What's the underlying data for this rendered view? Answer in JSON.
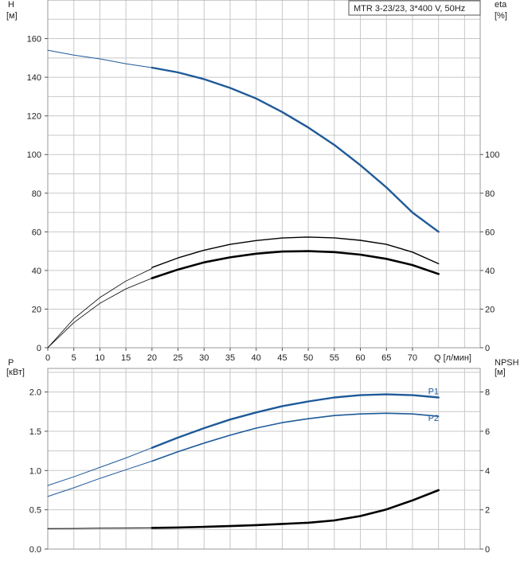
{
  "chart_data": [
    {
      "id": "top",
      "type": "line",
      "title_box": "MTR 3-23/23, 3*400 V, 50Hz",
      "left_axis": {
        "label_line1": "H",
        "label_line2": "[м]",
        "ticks": [
          0,
          20,
          40,
          60,
          80,
          100,
          120,
          140,
          160
        ],
        "range": [
          0,
          180
        ]
      },
      "right_axis": {
        "label_line1": "eta",
        "label_line2": "[%]",
        "ticks": [
          0,
          20,
          40,
          60,
          80,
          100
        ],
        "range": [
          0,
          180
        ]
      },
      "x_axis": {
        "ticks": [
          0,
          5,
          10,
          15,
          20,
          25,
          30,
          35,
          40,
          45,
          50,
          55,
          60,
          65,
          70
        ],
        "label": "Q [л/мин]",
        "range": [
          0,
          83
        ]
      },
      "grid": true,
      "series": [
        {
          "axis": "left",
          "color": "#1f5a99",
          "width": 1,
          "points": [
            [
              0,
              154
            ],
            [
              5,
              151.5
            ],
            [
              10,
              149.5
            ],
            [
              15,
              147
            ],
            [
              20,
              145
            ]
          ]
        },
        {
          "axis": "left",
          "color": "#1f5a99",
          "width": 2.4,
          "points": [
            [
              20,
              145
            ],
            [
              25,
              142.5
            ],
            [
              30,
              139
            ],
            [
              35,
              134.5
            ],
            [
              40,
              129
            ],
            [
              45,
              122
            ],
            [
              50,
              114
            ],
            [
              55,
              105
            ],
            [
              60,
              94.5
            ],
            [
              65,
              83
            ],
            [
              70,
              70
            ],
            [
              75,
              60
            ]
          ]
        },
        {
          "axis": "right",
          "color": "#000000",
          "width": 0.8,
          "points": [
            [
              0,
              0
            ],
            [
              5,
              15
            ],
            [
              10,
              26
            ],
            [
              15,
              34.5
            ],
            [
              20,
              41
            ]
          ]
        },
        {
          "axis": "right",
          "color": "#000000",
          "width": 1.4,
          "points": [
            [
              20,
              41.5
            ],
            [
              25,
              46.5
            ],
            [
              30,
              50.5
            ],
            [
              35,
              53.5
            ],
            [
              40,
              55.5
            ],
            [
              45,
              56.8
            ],
            [
              50,
              57.3
            ],
            [
              55,
              56.9
            ],
            [
              60,
              55.6
            ],
            [
              65,
              53.5
            ],
            [
              70,
              49.5
            ],
            [
              75,
              43.5
            ]
          ]
        },
        {
          "axis": "right",
          "color": "#000000",
          "width": 0.8,
          "points": [
            [
              0,
              0
            ],
            [
              5,
              13
            ],
            [
              10,
              23
            ],
            [
              15,
              30.5
            ],
            [
              20,
              36
            ]
          ]
        },
        {
          "axis": "right",
          "color": "#000000",
          "width": 2.6,
          "points": [
            [
              20,
              36
            ],
            [
              25,
              40.5
            ],
            [
              30,
              44.2
            ],
            [
              35,
              46.8
            ],
            [
              40,
              48.7
            ],
            [
              45,
              49.8
            ],
            [
              50,
              50
            ],
            [
              55,
              49.5
            ],
            [
              60,
              48.2
            ],
            [
              65,
              46
            ],
            [
              70,
              42.8
            ],
            [
              75,
              38.2
            ]
          ]
        }
      ]
    },
    {
      "id": "bottom",
      "type": "line",
      "left_axis": {
        "label_line1": "P",
        "label_line2": "[кВт]",
        "ticks": [
          "0.0",
          "0.5",
          "1.0",
          "1.5",
          "2.0"
        ],
        "tick_values": [
          0,
          0.5,
          1.0,
          1.5,
          2.0
        ],
        "range": [
          0,
          2.3
        ]
      },
      "right_axis": {
        "label_line1": "NPSH",
        "label_line2": "[м]",
        "ticks": [
          0,
          2,
          4,
          6,
          8
        ],
        "range": [
          0,
          9.2
        ]
      },
      "x_axis": {
        "ticks": [
          0,
          5,
          10,
          15,
          20,
          25,
          30,
          35,
          40,
          45,
          50,
          55,
          60,
          65,
          70
        ],
        "range": [
          0,
          83
        ]
      },
      "grid": true,
      "series": [
        {
          "name": "P1",
          "axis": "left",
          "color": "#1f5a99",
          "width": 1,
          "points": [
            [
              0,
              0.81
            ],
            [
              5,
              0.92
            ],
            [
              10,
              1.04
            ],
            [
              15,
              1.16
            ],
            [
              20,
              1.29
            ]
          ]
        },
        {
          "name": "P1",
          "axis": "left",
          "color": "#1f5a99",
          "width": 2.4,
          "label_at": [
            73,
            1.97
          ],
          "points": [
            [
              20,
              1.29
            ],
            [
              25,
              1.42
            ],
            [
              30,
              1.54
            ],
            [
              35,
              1.65
            ],
            [
              40,
              1.74
            ],
            [
              45,
              1.82
            ],
            [
              50,
              1.88
            ],
            [
              55,
              1.93
            ],
            [
              60,
              1.96
            ],
            [
              65,
              1.97
            ],
            [
              70,
              1.96
            ],
            [
              75,
              1.93
            ]
          ]
        },
        {
          "name": "P2",
          "axis": "left",
          "color": "#1f5a99",
          "width": 1,
          "points": [
            [
              0,
              0.67
            ],
            [
              5,
              0.78
            ],
            [
              10,
              0.9
            ],
            [
              15,
              1.01
            ],
            [
              20,
              1.12
            ]
          ]
        },
        {
          "name": "P2",
          "axis": "left",
          "color": "#1f5a99",
          "width": 1.6,
          "label_at": [
            73,
            1.63
          ],
          "points": [
            [
              20,
              1.12
            ],
            [
              25,
              1.24
            ],
            [
              30,
              1.35
            ],
            [
              35,
              1.45
            ],
            [
              40,
              1.54
            ],
            [
              45,
              1.61
            ],
            [
              50,
              1.66
            ],
            [
              55,
              1.7
            ],
            [
              60,
              1.72
            ],
            [
              65,
              1.73
            ],
            [
              70,
              1.72
            ],
            [
              75,
              1.69
            ]
          ]
        },
        {
          "axis": "right",
          "color": "#000000",
          "width": 1,
          "points": [
            [
              0,
              1.04
            ],
            [
              5,
              1.05
            ],
            [
              10,
              1.06
            ],
            [
              15,
              1.07
            ],
            [
              20,
              1.08
            ]
          ]
        },
        {
          "axis": "right",
          "color": "#000000",
          "width": 2.6,
          "points": [
            [
              20,
              1.08
            ],
            [
              25,
              1.1
            ],
            [
              30,
              1.13
            ],
            [
              35,
              1.17
            ],
            [
              40,
              1.22
            ],
            [
              45,
              1.28
            ],
            [
              50,
              1.34
            ],
            [
              55,
              1.46
            ],
            [
              60,
              1.68
            ],
            [
              65,
              2.02
            ],
            [
              70,
              2.48
            ],
            [
              75,
              3.0
            ]
          ]
        }
      ]
    }
  ]
}
